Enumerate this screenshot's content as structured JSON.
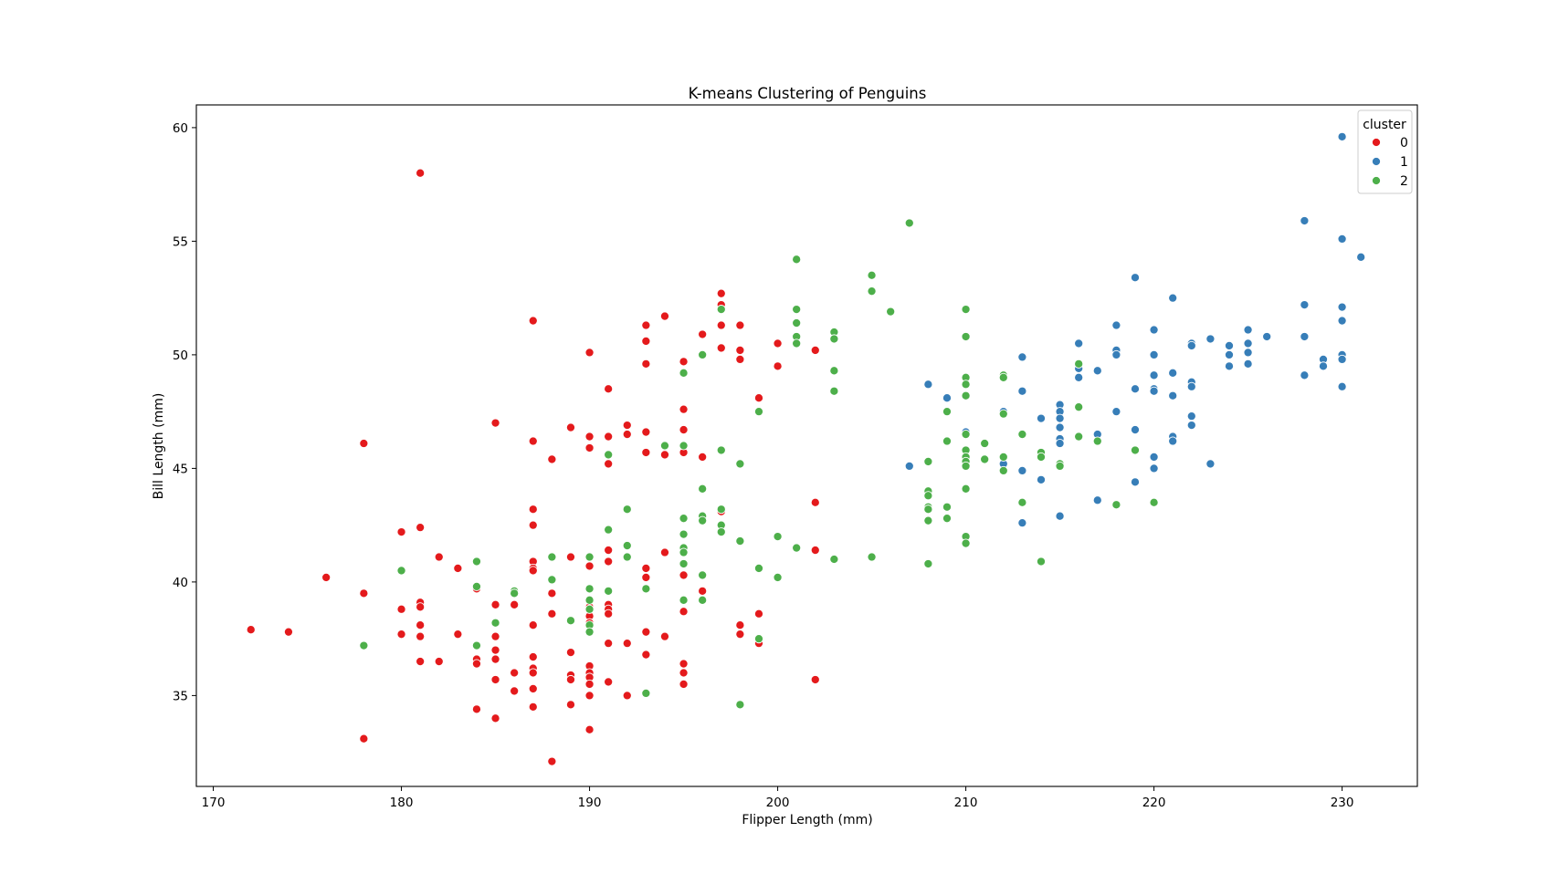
{
  "chart_data": {
    "type": "scatter",
    "title": "K-means Clustering of Penguins",
    "xlabel": "Flipper Length (mm)",
    "ylabel": "Bill Length (mm)",
    "xlim": [
      169.1,
      234.0
    ],
    "ylim": [
      31.0,
      61.0
    ],
    "xticks": [
      170,
      180,
      190,
      200,
      210,
      220,
      230
    ],
    "yticks": [
      35,
      40,
      45,
      50,
      55,
      60
    ],
    "grid": false,
    "legend": {
      "title": "cluster",
      "placement": "top-right"
    },
    "series": [
      {
        "name": "0",
        "color": "#e41a1c",
        "points": [
          [
            172,
            37.9
          ],
          [
            174,
            37.8
          ],
          [
            176,
            40.2
          ],
          [
            178,
            46.1
          ],
          [
            178,
            39.5
          ],
          [
            178,
            33.1
          ],
          [
            180,
            42.2
          ],
          [
            180,
            38.8
          ],
          [
            180,
            37.7
          ],
          [
            181,
            58.0
          ],
          [
            181,
            42.4
          ],
          [
            181,
            39.1
          ],
          [
            181,
            38.9
          ],
          [
            181,
            38.1
          ],
          [
            181,
            37.6
          ],
          [
            181,
            36.5
          ],
          [
            182,
            41.1
          ],
          [
            182,
            36.5
          ],
          [
            183,
            40.6
          ],
          [
            183,
            37.7
          ],
          [
            184,
            39.7
          ],
          [
            184,
            36.6
          ],
          [
            184,
            36.4
          ],
          [
            184,
            34.4
          ],
          [
            185,
            47.0
          ],
          [
            185,
            39.0
          ],
          [
            185,
            37.6
          ],
          [
            185,
            37.0
          ],
          [
            185,
            36.6
          ],
          [
            185,
            35.7
          ],
          [
            185,
            34.0
          ],
          [
            186,
            39.0
          ],
          [
            186,
            36.0
          ],
          [
            186,
            35.2
          ],
          [
            187,
            51.5
          ],
          [
            187,
            46.2
          ],
          [
            187,
            43.2
          ],
          [
            187,
            42.5
          ],
          [
            187,
            40.9
          ],
          [
            187,
            40.6
          ],
          [
            187,
            40.5
          ],
          [
            187,
            38.1
          ],
          [
            187,
            36.7
          ],
          [
            187,
            36.2
          ],
          [
            187,
            36.0
          ],
          [
            187,
            35.3
          ],
          [
            187,
            34.5
          ],
          [
            188,
            45.4
          ],
          [
            188,
            39.5
          ],
          [
            188,
            38.6
          ],
          [
            188,
            32.1
          ],
          [
            189,
            46.8
          ],
          [
            189,
            41.1
          ],
          [
            189,
            36.9
          ],
          [
            189,
            35.9
          ],
          [
            189,
            35.7
          ],
          [
            189,
            34.6
          ],
          [
            190,
            50.1
          ],
          [
            190,
            46.4
          ],
          [
            190,
            45.9
          ],
          [
            190,
            40.7
          ],
          [
            190,
            38.9
          ],
          [
            190,
            38.5
          ],
          [
            190,
            38.2
          ],
          [
            190,
            36.3
          ],
          [
            190,
            36.0
          ],
          [
            190,
            35.8
          ],
          [
            190,
            35.5
          ],
          [
            190,
            35.0
          ],
          [
            190,
            33.5
          ],
          [
            191,
            48.5
          ],
          [
            191,
            46.4
          ],
          [
            191,
            45.2
          ],
          [
            191,
            41.4
          ],
          [
            191,
            40.9
          ],
          [
            191,
            39.0
          ],
          [
            191,
            38.8
          ],
          [
            191,
            38.6
          ],
          [
            191,
            37.3
          ],
          [
            191,
            35.6
          ],
          [
            192,
            46.9
          ],
          [
            192,
            46.5
          ],
          [
            192,
            37.3
          ],
          [
            192,
            35.0
          ],
          [
            193,
            51.3
          ],
          [
            193,
            50.6
          ],
          [
            193,
            49.6
          ],
          [
            193,
            46.6
          ],
          [
            193,
            45.7
          ],
          [
            193,
            40.6
          ],
          [
            193,
            40.2
          ],
          [
            193,
            37.8
          ],
          [
            193,
            36.8
          ],
          [
            194,
            51.7
          ],
          [
            194,
            45.6
          ],
          [
            194,
            41.3
          ],
          [
            194,
            37.6
          ],
          [
            195,
            49.7
          ],
          [
            195,
            47.6
          ],
          [
            195,
            46.7
          ],
          [
            195,
            45.7
          ],
          [
            195,
            40.3
          ],
          [
            195,
            38.7
          ],
          [
            195,
            36.4
          ],
          [
            195,
            36.0
          ],
          [
            195,
            35.5
          ],
          [
            196,
            50.9
          ],
          [
            196,
            45.5
          ],
          [
            196,
            39.6
          ],
          [
            197,
            52.7
          ],
          [
            197,
            52.2
          ],
          [
            197,
            51.3
          ],
          [
            197,
            50.3
          ],
          [
            197,
            43.1
          ],
          [
            198,
            51.3
          ],
          [
            198,
            50.2
          ],
          [
            198,
            49.8
          ],
          [
            198,
            38.1
          ],
          [
            198,
            37.7
          ],
          [
            199,
            48.1
          ],
          [
            199,
            38.6
          ],
          [
            199,
            37.3
          ],
          [
            200,
            50.5
          ],
          [
            200,
            49.5
          ],
          [
            202,
            50.2
          ],
          [
            202,
            43.5
          ],
          [
            202,
            41.4
          ],
          [
            202,
            35.7
          ]
        ]
      },
      {
        "name": "1",
        "color": "#377eb8",
        "points": [
          [
            207,
            45.1
          ],
          [
            208,
            48.7
          ],
          [
            209,
            48.1
          ],
          [
            210,
            46.6
          ],
          [
            212,
            47.5
          ],
          [
            212,
            45.2
          ],
          [
            213,
            49.9
          ],
          [
            213,
            48.4
          ],
          [
            213,
            44.9
          ],
          [
            213,
            42.6
          ],
          [
            214,
            47.2
          ],
          [
            214,
            44.5
          ],
          [
            215,
            47.8
          ],
          [
            215,
            47.5
          ],
          [
            215,
            47.2
          ],
          [
            215,
            46.8
          ],
          [
            215,
            46.3
          ],
          [
            215,
            46.1
          ],
          [
            215,
            45.2
          ],
          [
            215,
            42.9
          ],
          [
            216,
            50.5
          ],
          [
            216,
            49.4
          ],
          [
            216,
            49.0
          ],
          [
            217,
            49.3
          ],
          [
            217,
            46.5
          ],
          [
            217,
            43.6
          ],
          [
            218,
            51.3
          ],
          [
            218,
            50.2
          ],
          [
            218,
            50.0
          ],
          [
            218,
            47.5
          ],
          [
            219,
            53.4
          ],
          [
            219,
            48.5
          ],
          [
            219,
            46.7
          ],
          [
            219,
            44.4
          ],
          [
            220,
            51.1
          ],
          [
            220,
            50.0
          ],
          [
            220,
            49.1
          ],
          [
            220,
            48.5
          ],
          [
            220,
            48.4
          ],
          [
            220,
            45.5
          ],
          [
            220,
            45.0
          ],
          [
            221,
            52.5
          ],
          [
            221,
            49.2
          ],
          [
            221,
            48.2
          ],
          [
            221,
            46.4
          ],
          [
            221,
            46.2
          ],
          [
            222,
            50.5
          ],
          [
            222,
            50.4
          ],
          [
            222,
            48.8
          ],
          [
            222,
            48.6
          ],
          [
            222,
            47.3
          ],
          [
            222,
            46.9
          ],
          [
            223,
            50.7
          ],
          [
            223,
            45.2
          ],
          [
            224,
            50.4
          ],
          [
            224,
            50.0
          ],
          [
            224,
            49.5
          ],
          [
            225,
            51.1
          ],
          [
            225,
            50.5
          ],
          [
            225,
            50.1
          ],
          [
            225,
            49.6
          ],
          [
            226,
            50.8
          ],
          [
            228,
            55.9
          ],
          [
            228,
            52.2
          ],
          [
            228,
            50.8
          ],
          [
            228,
            49.1
          ],
          [
            229,
            49.8
          ],
          [
            229,
            49.5
          ],
          [
            230,
            59.6
          ],
          [
            230,
            55.1
          ],
          [
            230,
            52.1
          ],
          [
            230,
            51.5
          ],
          [
            230,
            50.0
          ],
          [
            230,
            49.8
          ],
          [
            230,
            48.6
          ],
          [
            231,
            54.3
          ]
        ]
      },
      {
        "name": "2",
        "color": "#4daf4a",
        "points": [
          [
            178,
            37.2
          ],
          [
            180,
            40.5
          ],
          [
            184,
            40.9
          ],
          [
            184,
            39.8
          ],
          [
            184,
            37.2
          ],
          [
            185,
            38.2
          ],
          [
            186,
            39.6
          ],
          [
            186,
            39.5
          ],
          [
            188,
            41.1
          ],
          [
            188,
            40.1
          ],
          [
            189,
            38.3
          ],
          [
            190,
            41.1
          ],
          [
            190,
            39.7
          ],
          [
            190,
            39.2
          ],
          [
            190,
            38.8
          ],
          [
            190,
            38.1
          ],
          [
            190,
            37.8
          ],
          [
            191,
            45.6
          ],
          [
            191,
            42.3
          ],
          [
            191,
            39.6
          ],
          [
            192,
            43.2
          ],
          [
            192,
            41.6
          ],
          [
            192,
            41.1
          ],
          [
            193,
            39.7
          ],
          [
            193,
            35.1
          ],
          [
            194,
            46.0
          ],
          [
            195,
            49.2
          ],
          [
            195,
            46.0
          ],
          [
            195,
            42.8
          ],
          [
            195,
            42.1
          ],
          [
            195,
            41.5
          ],
          [
            195,
            41.3
          ],
          [
            195,
            40.8
          ],
          [
            195,
            39.2
          ],
          [
            196,
            50.0
          ],
          [
            196,
            44.1
          ],
          [
            196,
            42.9
          ],
          [
            196,
            42.7
          ],
          [
            196,
            40.3
          ],
          [
            196,
            39.2
          ],
          [
            197,
            52.0
          ],
          [
            197,
            45.8
          ],
          [
            197,
            43.2
          ],
          [
            197,
            42.5
          ],
          [
            197,
            42.2
          ],
          [
            198,
            45.2
          ],
          [
            198,
            41.8
          ],
          [
            198,
            34.6
          ],
          [
            199,
            47.5
          ],
          [
            199,
            40.6
          ],
          [
            199,
            37.5
          ],
          [
            200,
            42.0
          ],
          [
            200,
            40.2
          ],
          [
            201,
            54.2
          ],
          [
            201,
            52.0
          ],
          [
            201,
            51.4
          ],
          [
            201,
            50.8
          ],
          [
            201,
            50.5
          ],
          [
            201,
            41.5
          ],
          [
            203,
            51.0
          ],
          [
            203,
            50.7
          ],
          [
            203,
            49.3
          ],
          [
            203,
            48.4
          ],
          [
            203,
            41.0
          ],
          [
            205,
            53.5
          ],
          [
            205,
            52.8
          ],
          [
            205,
            41.1
          ],
          [
            206,
            51.9
          ],
          [
            207,
            55.8
          ],
          [
            208,
            45.3
          ],
          [
            208,
            44.0
          ],
          [
            208,
            43.8
          ],
          [
            208,
            43.3
          ],
          [
            208,
            43.2
          ],
          [
            208,
            42.7
          ],
          [
            208,
            40.8
          ],
          [
            209,
            47.5
          ],
          [
            209,
            46.2
          ],
          [
            209,
            43.3
          ],
          [
            209,
            42.8
          ],
          [
            210,
            52.0
          ],
          [
            210,
            50.8
          ],
          [
            210,
            49.0
          ],
          [
            210,
            48.7
          ],
          [
            210,
            48.2
          ],
          [
            210,
            46.5
          ],
          [
            210,
            45.8
          ],
          [
            210,
            45.5
          ],
          [
            210,
            45.3
          ],
          [
            210,
            45.1
          ],
          [
            210,
            44.1
          ],
          [
            210,
            42.0
          ],
          [
            210,
            41.7
          ],
          [
            211,
            46.1
          ],
          [
            211,
            45.4
          ],
          [
            212,
            49.1
          ],
          [
            212,
            49.0
          ],
          [
            212,
            47.4
          ],
          [
            212,
            45.5
          ],
          [
            212,
            44.9
          ],
          [
            213,
            46.5
          ],
          [
            213,
            43.5
          ],
          [
            214,
            45.7
          ],
          [
            214,
            45.5
          ],
          [
            214,
            40.9
          ],
          [
            215,
            45.2
          ],
          [
            215,
            45.1
          ],
          [
            216,
            49.6
          ],
          [
            216,
            47.7
          ],
          [
            216,
            46.4
          ],
          [
            217,
            46.2
          ],
          [
            218,
            43.4
          ],
          [
            219,
            45.8
          ],
          [
            220,
            43.5
          ]
        ]
      }
    ]
  }
}
